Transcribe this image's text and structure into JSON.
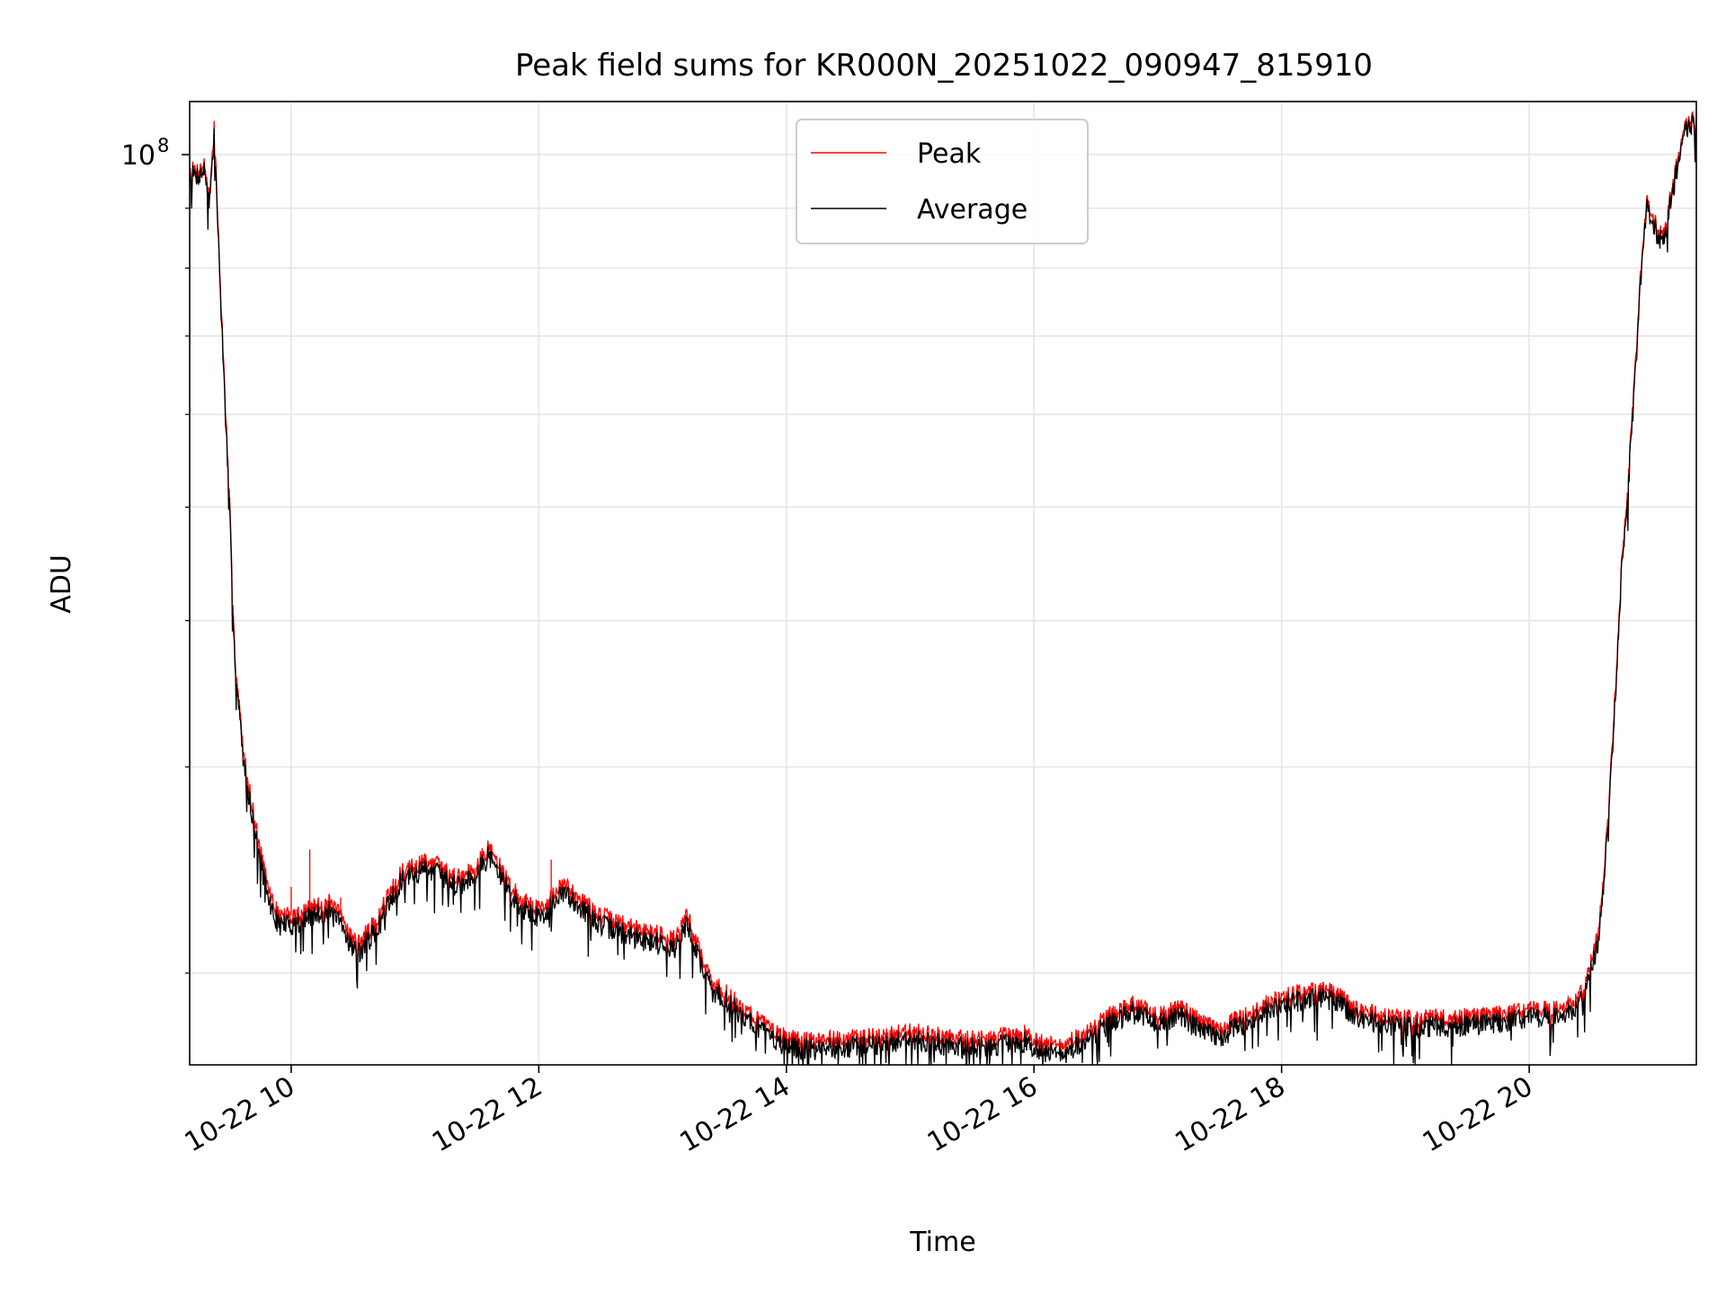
{
  "chart_data": {
    "type": "line",
    "title": "Peak field sums for KR000N_20251022_090947_815910",
    "xlabel": "Time",
    "ylabel": "ADU",
    "yscale": "log",
    "xlim": [
      9.18,
      21.35
    ],
    "ylim": [
      16700000,
      111000000
    ],
    "x_ticks": [
      {
        "value": 10,
        "label": "10-22 10"
      },
      {
        "value": 12,
        "label": "10-22 12"
      },
      {
        "value": 14,
        "label": "10-22 14"
      },
      {
        "value": 16,
        "label": "10-22 16"
      },
      {
        "value": 18,
        "label": "10-22 18"
      },
      {
        "value": 20,
        "label": "10-22 20"
      }
    ],
    "y_major_tick": {
      "value": 100000000,
      "base": "10",
      "exponent": "8"
    },
    "y_minor_ticks": [
      20000000,
      30000000,
      40000000,
      50000000,
      60000000,
      70000000,
      80000000,
      90000000
    ],
    "grid": true,
    "legend": {
      "position": "top-center",
      "entries": [
        "Peak",
        "Average"
      ]
    },
    "colors": {
      "peak": "#ff0000",
      "average": "#000000",
      "grid": "#e6e6e6"
    },
    "series": [
      {
        "name": "Average",
        "x": [
          9.18,
          9.25,
          9.3,
          9.34,
          9.38,
          9.42,
          9.5,
          9.55,
          9.62,
          9.72,
          9.8,
          9.85,
          9.9,
          10.0,
          10.15,
          10.3,
          10.4,
          10.5,
          10.55,
          10.6,
          10.7,
          10.8,
          10.9,
          11.0,
          11.1,
          11.2,
          11.3,
          11.4,
          11.5,
          11.6,
          11.7,
          11.8,
          11.9,
          12.0,
          12.1,
          12.2,
          12.3,
          12.4,
          12.5,
          12.6,
          12.7,
          12.8,
          12.9,
          13.0,
          13.1,
          13.2,
          13.3,
          13.4,
          13.5,
          13.6,
          13.7,
          13.8,
          13.9,
          14.0,
          14.2,
          14.4,
          14.6,
          14.8,
          15.0,
          15.2,
          15.4,
          15.6,
          15.8,
          15.9,
          16.0,
          16.2,
          16.4,
          16.6,
          16.8,
          16.9,
          17.0,
          17.1,
          17.2,
          17.3,
          17.4,
          17.5,
          17.6,
          17.7,
          17.8,
          17.9,
          18.0,
          18.2,
          18.4,
          18.6,
          18.8,
          19.0,
          19.2,
          19.4,
          19.6,
          19.8,
          20.0,
          20.2,
          20.35,
          20.45,
          20.55,
          20.6,
          20.65,
          20.7,
          20.75,
          20.8,
          20.85,
          20.9,
          20.95,
          21.0,
          21.05,
          21.1,
          21.15,
          21.2,
          21.25,
          21.3,
          21.35
        ],
        "values": [
          96000000,
          96000000,
          97000000,
          91000000,
          104000000,
          80000000,
          50000000,
          36000000,
          30000000,
          26000000,
          23500000,
          22500000,
          22000000,
          22000000,
          22300000,
          22600000,
          22000000,
          21000000,
          20800000,
          21200000,
          21800000,
          23200000,
          24000000,
          24300000,
          24600000,
          24300000,
          23800000,
          23900000,
          24400000,
          25200000,
          24100000,
          23100000,
          22600000,
          22300000,
          22800000,
          23400000,
          23000000,
          22400000,
          22000000,
          21800000,
          21600000,
          21400000,
          21300000,
          21200000,
          21000000,
          22000000,
          20500000,
          19300000,
          19000000,
          18600000,
          18200000,
          17900000,
          17600000,
          17300000,
          17200000,
          17300000,
          17300000,
          17400000,
          17600000,
          17400000,
          17300000,
          17300000,
          17400000,
          17500000,
          17300000,
          17000000,
          17400000,
          18100000,
          18500000,
          18300000,
          18100000,
          18300000,
          18400000,
          18000000,
          17800000,
          17600000,
          17900000,
          18100000,
          18300000,
          18600000,
          18800000,
          19000000,
          19000000,
          18400000,
          18100000,
          18000000,
          18000000,
          18000000,
          18100000,
          18200000,
          18300000,
          18400000,
          18600000,
          19200000,
          21000000,
          23500000,
          28000000,
          35000000,
          45000000,
          52000000,
          63000000,
          78000000,
          90000000,
          88000000,
          84000000,
          86000000,
          92000000,
          98000000,
          104000000,
          106000000,
          106000000
        ]
      },
      {
        "name": "Peak",
        "x": [
          9.18,
          9.25,
          9.3,
          9.34,
          9.38,
          9.42,
          9.5,
          9.55,
          9.62,
          9.72,
          9.8,
          9.85,
          9.9,
          10.0,
          10.15,
          10.3,
          10.4,
          10.5,
          10.55,
          10.6,
          10.7,
          10.8,
          10.9,
          11.0,
          11.1,
          11.2,
          11.3,
          11.4,
          11.5,
          11.6,
          11.7,
          11.8,
          11.9,
          12.0,
          12.1,
          12.2,
          12.3,
          12.4,
          12.5,
          12.6,
          12.7,
          12.8,
          12.9,
          13.0,
          13.1,
          13.2,
          13.3,
          13.4,
          13.5,
          13.6,
          13.7,
          13.8,
          13.9,
          14.0,
          14.2,
          14.4,
          14.6,
          14.8,
          15.0,
          15.2,
          15.4,
          15.6,
          15.8,
          15.9,
          16.0,
          16.2,
          16.4,
          16.6,
          16.8,
          16.9,
          17.0,
          17.1,
          17.2,
          17.3,
          17.4,
          17.5,
          17.6,
          17.7,
          17.8,
          17.9,
          18.0,
          18.2,
          18.4,
          18.6,
          18.8,
          19.0,
          19.2,
          19.4,
          19.6,
          19.8,
          20.0,
          20.2,
          20.35,
          20.45,
          20.55,
          20.6,
          20.65,
          20.7,
          20.75,
          20.8,
          20.85,
          20.9,
          20.95,
          21.0,
          21.05,
          21.1,
          21.15,
          21.2,
          21.25,
          21.3,
          21.35
        ],
        "values": [
          97000000,
          97000000,
          98000000,
          92000000,
          106000000,
          81000000,
          51000000,
          36500000,
          30500000,
          26500000,
          24000000,
          23000000,
          22400000,
          22400000,
          22700000,
          23000000,
          22400000,
          21400000,
          21200000,
          21600000,
          22200000,
          23600000,
          24400000,
          24700000,
          25000000,
          24700000,
          24200000,
          24300000,
          24800000,
          25600000,
          24500000,
          23500000,
          23000000,
          22700000,
          23200000,
          23800000,
          23400000,
          22800000,
          22400000,
          22200000,
          22000000,
          21800000,
          21700000,
          21600000,
          21400000,
          22400000,
          20900000,
          19600000,
          19300000,
          18900000,
          18500000,
          18200000,
          17900000,
          17600000,
          17500000,
          17600000,
          17600000,
          17700000,
          17900000,
          17700000,
          17600000,
          17600000,
          17700000,
          17800000,
          17600000,
          17300000,
          17700000,
          18400000,
          18800000,
          18600000,
          18400000,
          18600000,
          18700000,
          18300000,
          18100000,
          17900000,
          18200000,
          18400000,
          18600000,
          18900000,
          19100000,
          19300000,
          19300000,
          18700000,
          18400000,
          18300000,
          18300000,
          18300000,
          18400000,
          18500000,
          18600000,
          18700000,
          18900000,
          19500000,
          21400000,
          23900000,
          28500000,
          35500000,
          45500000,
          52800000,
          64000000,
          79000000,
          91000000,
          89000000,
          85000000,
          87000000,
          93000000,
          99000000,
          105000000,
          107000000,
          107000000
        ]
      }
    ],
    "peak_spikes": [
      {
        "x": 10.15,
        "value": 25500000
      },
      {
        "x": 10.0,
        "value": 23700000
      },
      {
        "x": 10.4,
        "value": 23200000
      },
      {
        "x": 12.1,
        "value": 25000000
      },
      {
        "x": 11.65,
        "value": 25200000
      },
      {
        "x": 13.15,
        "value": 22200000
      },
      {
        "x": 15.75,
        "value": 17900000
      },
      {
        "x": 19.1,
        "value": 18500000
      }
    ]
  }
}
